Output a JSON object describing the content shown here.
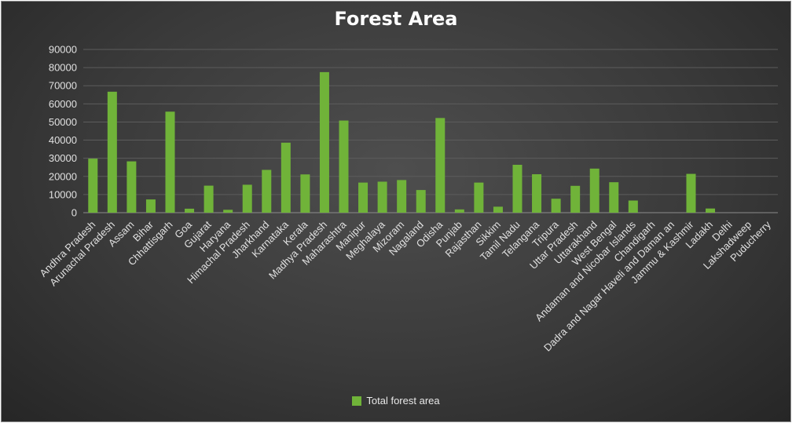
{
  "chart_data": {
    "type": "bar",
    "title": "Forest Area",
    "xlabel": "",
    "ylabel": "",
    "ylim": [
      0,
      90000
    ],
    "yticks": [
      "0",
      "10000",
      "20000",
      "30000",
      "40000",
      "50000",
      "60000",
      "70000",
      "80000",
      "90000"
    ],
    "grid": true,
    "legend_position": "bottom",
    "categories": [
      "Andhra Pradesh",
      "Arunachal Pradesh",
      "Assam",
      "Bihar",
      "Chhattisgarh",
      "Goa",
      "Gujarat",
      "Haryana",
      "Himachal Pradesh",
      "Jharkhand",
      "Karnataka",
      "Kerala",
      "Madhya Pradesh",
      "Maharashtra",
      "Manipur",
      "Meghalaya",
      "Mizoram",
      "Nagaland",
      "Odisha",
      "Punjab",
      "Rajasthan",
      "Sikkim",
      "Tamil Nadu",
      "Telangana",
      "Tripura",
      "Uttar Pradesh",
      "Uttarakhand",
      "West Bengal",
      "Andaman and Nicobar Islands",
      "Chandigarh",
      "Dadra and Nagar Haveli and Daman an",
      "Jammu & Kashmir",
      "Ladakh",
      "Delhi",
      "Lakshadweep",
      "Puducherry"
    ],
    "series": [
      {
        "name": "Total forest area",
        "color": "#70b339",
        "values": [
          29800,
          66700,
          28300,
          7300,
          55700,
          2200,
          14900,
          1600,
          15400,
          23600,
          38600,
          21100,
          77500,
          50800,
          16600,
          17100,
          18000,
          12500,
          52200,
          1800,
          16600,
          3300,
          26400,
          21200,
          7700,
          14800,
          24300,
          16800,
          6700,
          20,
          200,
          21400,
          2300,
          200,
          30,
          50
        ]
      }
    ]
  }
}
